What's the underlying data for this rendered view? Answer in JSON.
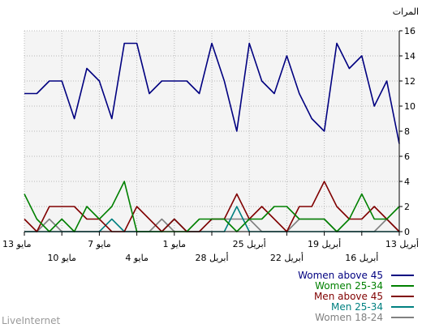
{
  "chart_data": {
    "type": "line",
    "ylabel": "المرات",
    "ylim": [
      0,
      16
    ],
    "yticks": [
      0,
      2,
      4,
      6,
      8,
      10,
      12,
      14,
      16
    ],
    "grid": true,
    "x_order": "right-to-left",
    "x_tick_labels": [
      {
        "index": 0,
        "row": 1,
        "label": "13 أبريل"
      },
      {
        "index": 3,
        "row": 2,
        "label": "16 أبريل"
      },
      {
        "index": 6,
        "row": 1,
        "label": "19 أبريل"
      },
      {
        "index": 9,
        "row": 2,
        "label": "22 أبريل"
      },
      {
        "index": 12,
        "row": 1,
        "label": "25 أبريل"
      },
      {
        "index": 15,
        "row": 2,
        "label": "28 أبريل"
      },
      {
        "index": 18,
        "row": 1,
        "label": "1 مايو"
      },
      {
        "index": 21,
        "row": 2,
        "label": "4 مايو"
      },
      {
        "index": 24,
        "row": 1,
        "label": "7 مايو"
      },
      {
        "index": 27,
        "row": 2,
        "label": "10 مايو"
      },
      {
        "index": 30,
        "row": 1,
        "label": "13 مايو"
      }
    ],
    "series": [
      {
        "name": "Women above 45",
        "color": "#000080",
        "values": [
          7,
          12,
          10,
          14,
          13,
          15,
          8,
          9,
          11,
          14,
          11,
          12,
          15,
          8,
          12,
          15,
          11,
          12,
          12,
          12,
          11,
          15,
          15,
          9,
          12,
          13,
          9,
          12,
          12,
          11,
          11
        ]
      },
      {
        "name": "Women 25-34",
        "color": "#008000",
        "values": [
          2,
          1,
          1,
          3,
          1,
          0,
          1,
          1,
          1,
          2,
          2,
          1,
          1,
          0,
          1,
          1,
          1,
          0,
          0,
          0,
          0,
          0,
          4,
          2,
          1,
          2,
          0,
          1,
          0,
          1,
          3
        ]
      },
      {
        "name": "Men above 45",
        "color": "#800000",
        "values": [
          0,
          1,
          2,
          1,
          1,
          2,
          4,
          2,
          2,
          0,
          1,
          2,
          1,
          3,
          1,
          1,
          0,
          0,
          1,
          0,
          1,
          2,
          0,
          0,
          1,
          1,
          2,
          2,
          2,
          0,
          1
        ]
      },
      {
        "name": "Men 25-34",
        "color": "#008080",
        "values": [
          0,
          0,
          0,
          0,
          0,
          0,
          0,
          0,
          0,
          0,
          0,
          0,
          0,
          2,
          0,
          0,
          0,
          0,
          1,
          0,
          0,
          0,
          0,
          1,
          0,
          0,
          0,
          0,
          0,
          0,
          0
        ]
      },
      {
        "name": "Women 18-24",
        "color": "#808080",
        "values": [
          0,
          1,
          0,
          0,
          0,
          0,
          1,
          1,
          1,
          0,
          0,
          0,
          1,
          1,
          1,
          1,
          0,
          0,
          0,
          1,
          0,
          0,
          0,
          0,
          0,
          0,
          0,
          0,
          1,
          0,
          0
        ]
      }
    ]
  },
  "watermark": "LiveInternet"
}
